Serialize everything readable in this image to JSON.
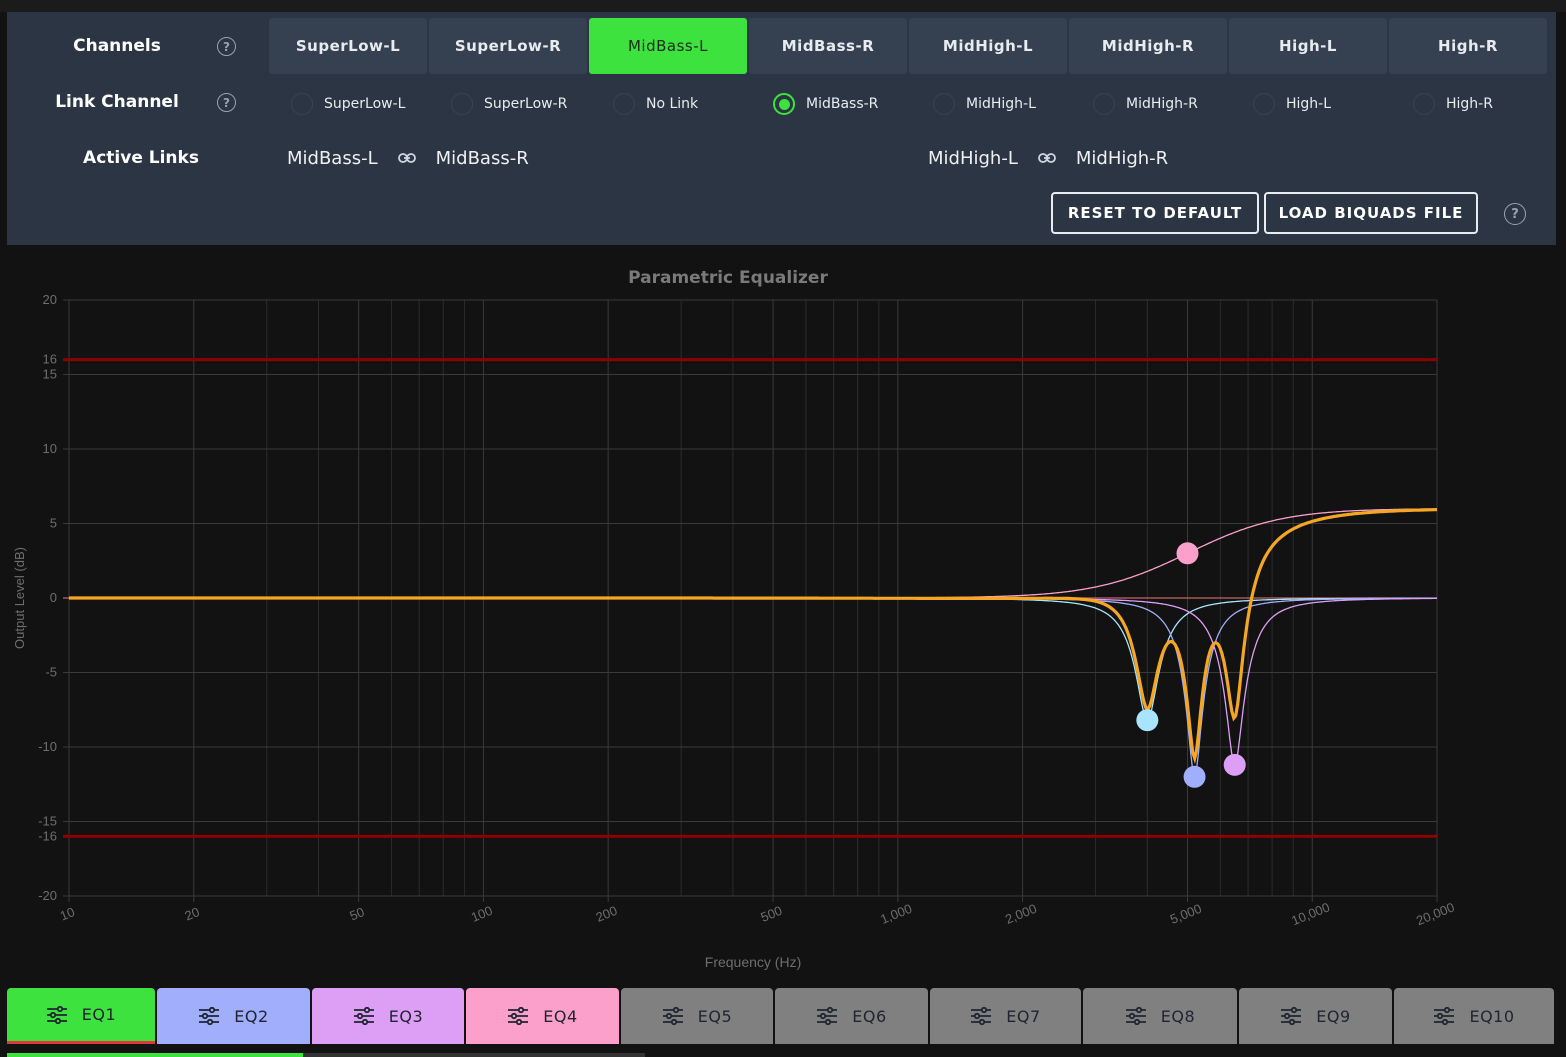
{
  "channels": {
    "label": "Channels",
    "items": [
      "SuperLow-L",
      "SuperLow-R",
      "MidBass-L",
      "MidBass-R",
      "MidHigh-L",
      "MidHigh-R",
      "High-L",
      "High-R"
    ],
    "active": "MidBass-L"
  },
  "link_channel": {
    "label": "Link Channel",
    "items": [
      "SuperLow-L",
      "SuperLow-R",
      "No Link",
      "MidBass-R",
      "MidHigh-L",
      "MidHigh-R",
      "High-L",
      "High-R"
    ],
    "selected": "MidBass-R"
  },
  "active_links": {
    "label": "Active Links",
    "links": [
      {
        "a": "MidBass-L",
        "b": "MidBass-R"
      },
      {
        "a": "MidHigh-L",
        "b": "MidHigh-R"
      }
    ]
  },
  "buttons": {
    "reset": "RESET TO DEFAULT",
    "load": "LOAD BIQUADS FILE"
  },
  "help_icon": "?",
  "chart_data": {
    "type": "line",
    "title": "Parametric Equalizer",
    "xlabel": "Frequency (Hz)",
    "ylabel": "Output Level (dB)",
    "xscale": "log",
    "xlim": [
      10,
      20000
    ],
    "ylim": [
      -20,
      20
    ],
    "xticks": [
      10,
      20,
      50,
      100,
      200,
      500,
      1000,
      2000,
      5000,
      10000,
      20000
    ],
    "xtick_labels": [
      "10",
      "20",
      "50",
      "100",
      "200",
      "500",
      "1,000",
      "2,000",
      "5,000",
      "10,000",
      "20,000"
    ],
    "yticks": [
      20,
      16,
      15,
      10,
      5,
      0,
      -5,
      -10,
      -15,
      -16,
      -20
    ],
    "limit_lines": [
      16,
      -16
    ],
    "limit_color": "#8b0000",
    "combined_color": "#f5a623",
    "filters": [
      {
        "name": "EQ1",
        "type": "peak",
        "freq": 4000,
        "gain": -8.2,
        "q": 6,
        "color": "#a9e4ff"
      },
      {
        "name": "EQ2",
        "type": "peak",
        "freq": 5200,
        "gain": -12,
        "q": 8,
        "color": "#a0aefc"
      },
      {
        "name": "EQ3",
        "type": "peak",
        "freq": 6500,
        "gain": -11.2,
        "q": 7,
        "color": "#dd9ff5"
      },
      {
        "name": "EQ4",
        "type": "highshelf",
        "freq": 5000,
        "gain": 6,
        "q": 0.7,
        "color": "#fb9fcb"
      }
    ],
    "handles": [
      {
        "freq": 4000,
        "gain": -8.2,
        "color": "#a9e4ff"
      },
      {
        "freq": 5200,
        "gain": -12,
        "color": "#a0aefc"
      },
      {
        "freq": 6500,
        "gain": -11.2,
        "color": "#dd9ff5"
      },
      {
        "freq": 5000,
        "gain": 3,
        "color": "#fb9fcb"
      }
    ]
  },
  "eq_tabs": [
    {
      "label": "EQ1",
      "color": "#3ee23e"
    },
    {
      "label": "EQ2",
      "color": "#a0aefc"
    },
    {
      "label": "EQ3",
      "color": "#dd9ff5"
    },
    {
      "label": "EQ4",
      "color": "#fb9fcb"
    },
    {
      "label": "EQ5",
      "color": "#808080"
    },
    {
      "label": "EQ6",
      "color": "#808080"
    },
    {
      "label": "EQ7",
      "color": "#808080"
    },
    {
      "label": "EQ8",
      "color": "#808080"
    },
    {
      "label": "EQ9",
      "color": "#808080"
    },
    {
      "label": "EQ10",
      "color": "#808080"
    }
  ],
  "active_tab": "EQ1"
}
